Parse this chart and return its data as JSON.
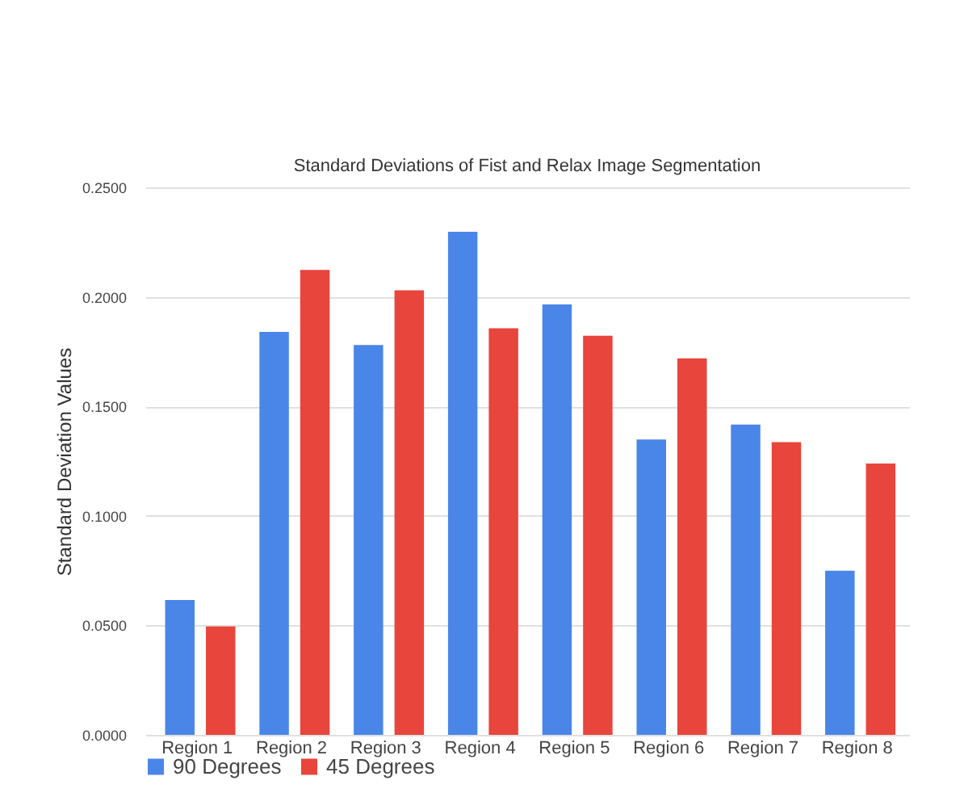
{
  "chart_data": {
    "type": "bar",
    "title": "Standard Deviations of Fist and Relax Image Segmentation",
    "ylabel": "Standard Deviation Values",
    "categories": [
      "Region 1",
      "Region 2",
      "Region 3",
      "Region 4",
      "Region 5",
      "Region 6",
      "Region 7",
      "Region 8"
    ],
    "series": [
      {
        "name": "90 Degrees",
        "color": "#4a86e8",
        "values": [
          0.0616,
          0.184,
          0.178,
          0.2297,
          0.1965,
          0.1349,
          0.1417,
          0.0749
        ]
      },
      {
        "name": "45 Degrees",
        "color": "#e8453c",
        "values": [
          0.0495,
          0.2123,
          0.203,
          0.1857,
          0.1822,
          0.1719,
          0.1337,
          0.1239
        ]
      }
    ],
    "ylim": [
      0,
      0.25
    ],
    "yticks": [
      {
        "value": 0,
        "label": "0.0000"
      },
      {
        "value": 0.05,
        "label": "0.0500"
      },
      {
        "value": 0.1,
        "label": "0.1000"
      },
      {
        "value": 0.15,
        "label": "0.1500"
      },
      {
        "value": 0.2,
        "label": "0.2000"
      },
      {
        "value": 0.25,
        "label": "0.2500"
      }
    ],
    "grid": "y",
    "legend": "bottom"
  }
}
